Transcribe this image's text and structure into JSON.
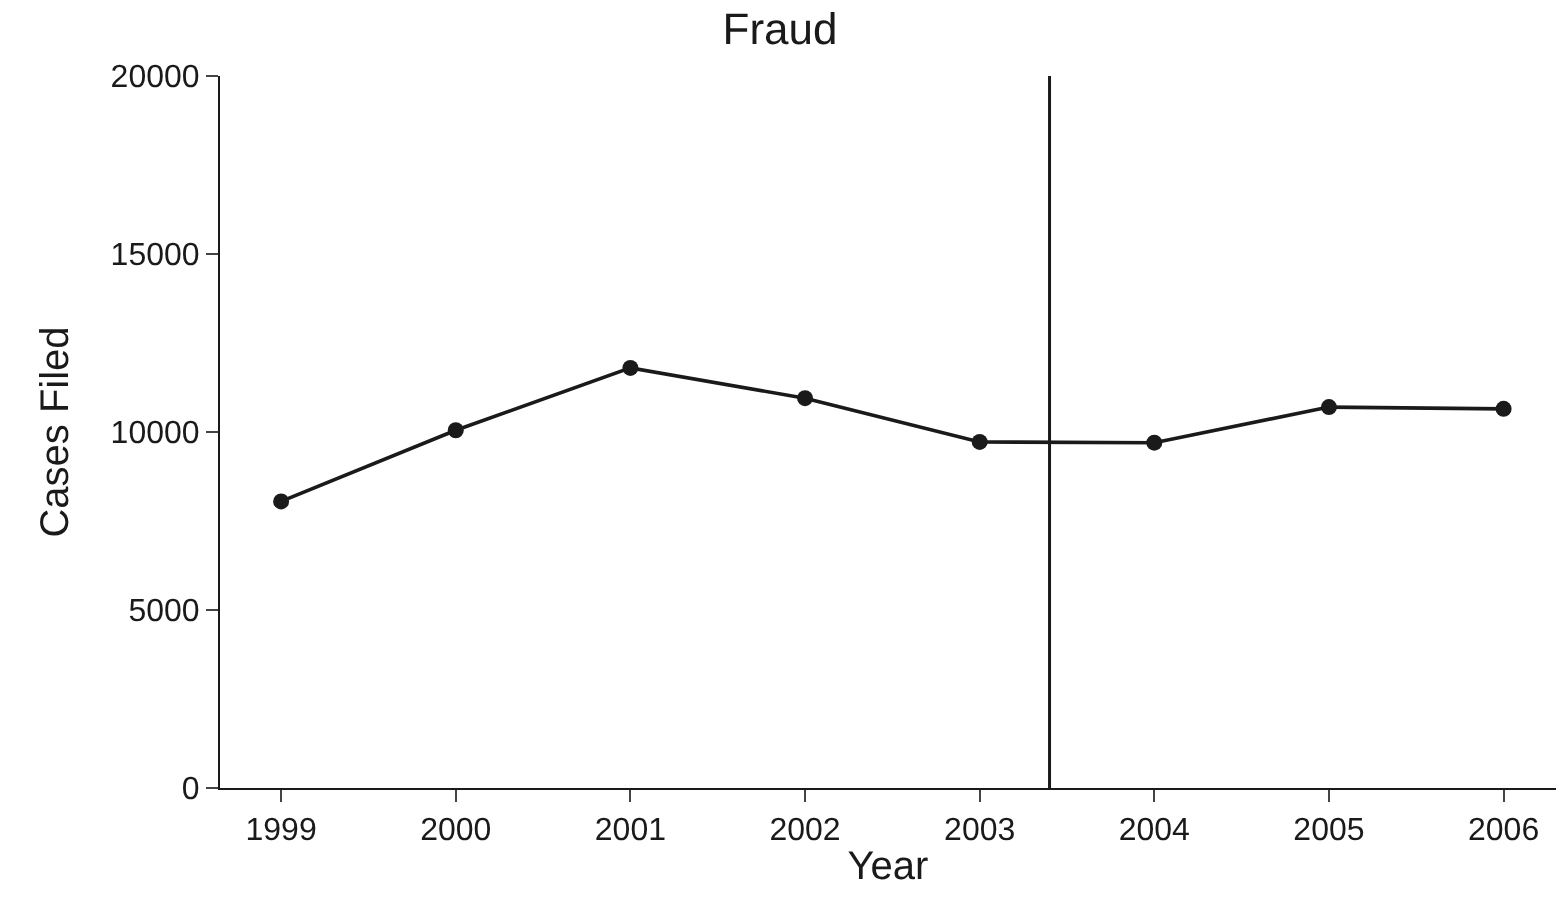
{
  "chart_data": {
    "type": "line",
    "title": "Fraud",
    "xlabel": "Year",
    "ylabel": "Cases Filed",
    "x": [
      1999,
      2000,
      2001,
      2002,
      2003,
      2004,
      2005,
      2006
    ],
    "series": [
      {
        "color": "#1a1a1a",
        "values": [
          8050,
          10050,
          11800,
          10950,
          9720,
          9700,
          10700,
          10650
        ]
      }
    ],
    "xlim": [
      1998.65,
      2006.3
    ],
    "xticks": [
      1999,
      2000,
      2001,
      2002,
      2003,
      2004,
      2005,
      2006
    ],
    "ylim": [
      0,
      20000
    ],
    "yticks": [
      0,
      5000,
      10000,
      15000,
      20000
    ],
    "ref_lines": [
      {
        "axis": "x",
        "value": 2003.4,
        "label": null,
        "color": "#1a1a1a"
      }
    ],
    "marker": "circle",
    "line_style": "solid"
  }
}
